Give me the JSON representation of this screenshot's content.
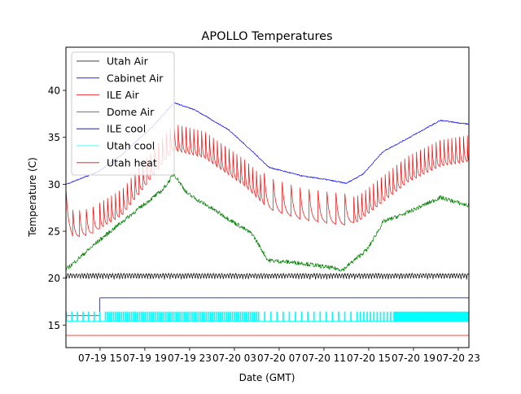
{
  "chart_data": {
    "type": "line",
    "title": "APOLLO Temperatures",
    "xlabel": "Date (GMT)",
    "ylabel": "Temperature (C)",
    "x_unit": "hours since 07-19 00:00 GMT",
    "xlim": [
      11.95,
      47.95
    ],
    "ylim": [
      12.6,
      44.6
    ],
    "grid": false,
    "legend_position": "top-left",
    "x_ticks": [
      {
        "value": 15,
        "label": "07-19 15"
      },
      {
        "value": 19,
        "label": "07-19 19"
      },
      {
        "value": 23,
        "label": "07-19 23"
      },
      {
        "value": 27,
        "label": "07-20 03"
      },
      {
        "value": 31,
        "label": "07-20 07"
      },
      {
        "value": 35,
        "label": "07-20 11"
      },
      {
        "value": 39,
        "label": "07-20 15"
      },
      {
        "value": 43,
        "label": "07-20 19"
      },
      {
        "value": 47,
        "label": "07-20 23"
      }
    ],
    "y_ticks": [
      {
        "value": 15,
        "label": "15"
      },
      {
        "value": 20,
        "label": "20"
      },
      {
        "value": 25,
        "label": "25"
      },
      {
        "value": 30,
        "label": "30"
      },
      {
        "value": 35,
        "label": "35"
      },
      {
        "value": 40,
        "label": "40"
      }
    ],
    "series": [
      {
        "name": "Utah Air",
        "color": "#000000",
        "kind": "oscillating",
        "base": [
          [
            11.95,
            20.2
          ],
          [
            47.95,
            20.2
          ]
        ],
        "amplitude": 0.5,
        "period_hours": 0.25
      },
      {
        "name": "Cabinet Air",
        "color": "#0000ff",
        "kind": "smooth",
        "points": [
          [
            11.95,
            30.0
          ],
          [
            14.8,
            31.3
          ],
          [
            17.0,
            33.2
          ],
          [
            19.9,
            36.4
          ],
          [
            21.6,
            38.7
          ],
          [
            23.5,
            37.9
          ],
          [
            26.5,
            35.8
          ],
          [
            28.6,
            33.5
          ],
          [
            30.1,
            31.8
          ],
          [
            33.0,
            30.9
          ],
          [
            35.2,
            30.5
          ],
          [
            37.0,
            30.1
          ],
          [
            38.5,
            31.1
          ],
          [
            40.3,
            33.5
          ],
          [
            42.5,
            34.9
          ],
          [
            45.4,
            36.8
          ],
          [
            47.95,
            36.4
          ]
        ]
      },
      {
        "name": "ILE Air",
        "color": "#ff0000",
        "kind": "sawtooth",
        "base": [
          [
            11.95,
            26.4
          ],
          [
            12.6,
            24.3
          ],
          [
            14.1,
            24.6
          ],
          [
            17.0,
            26.7
          ],
          [
            20.6,
            32.2
          ],
          [
            21.6,
            33.6
          ],
          [
            24.3,
            32.8
          ],
          [
            27.9,
            29.8
          ],
          [
            30.1,
            27.3
          ],
          [
            33.0,
            26.2
          ],
          [
            36.7,
            25.6
          ],
          [
            38.1,
            26.0
          ],
          [
            42.5,
            30.2
          ],
          [
            45.4,
            31.9
          ],
          [
            47.95,
            32.4
          ]
        ],
        "spike_height": 2.8,
        "period_hours": 0.35
      },
      {
        "name": "Dome Air",
        "color": "#008000",
        "kind": "noisy",
        "points": [
          [
            11.95,
            20.9
          ],
          [
            14.8,
            23.9
          ],
          [
            17.7,
            26.7
          ],
          [
            20.6,
            29.4
          ],
          [
            21.6,
            31.1
          ],
          [
            22.8,
            29.0
          ],
          [
            25.7,
            26.9
          ],
          [
            28.6,
            24.7
          ],
          [
            30.0,
            21.9
          ],
          [
            33.0,
            21.6
          ],
          [
            36.7,
            20.9
          ],
          [
            38.9,
            23.1
          ],
          [
            40.3,
            26.0
          ],
          [
            42.5,
            27.0
          ],
          [
            45.4,
            28.6
          ],
          [
            47.95,
            27.7
          ]
        ]
      },
      {
        "name": "ILE cool",
        "color": "#000080",
        "kind": "step",
        "points": [
          [
            11.95,
            16.0
          ],
          [
            14.98,
            16.0
          ],
          [
            14.98,
            17.9
          ],
          [
            47.95,
            17.9
          ]
        ]
      },
      {
        "name": "Utah cool",
        "color": "#00ffff",
        "kind": "pulse",
        "low": 15.4,
        "high": 16.4
      },
      {
        "name": "Utah heat",
        "color": "#ff0000",
        "kind": "constant",
        "points": [
          [
            11.95,
            13.9
          ],
          [
            47.95,
            13.9
          ]
        ]
      }
    ]
  }
}
